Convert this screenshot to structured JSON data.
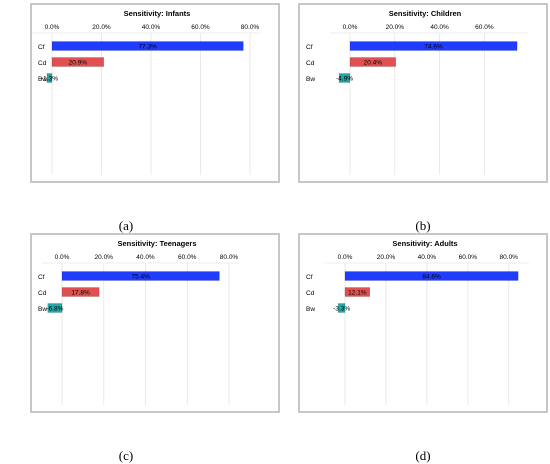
{
  "chart_data": [
    {
      "type": "bar",
      "title": "Sensitivity: Infants",
      "categories": [
        "Cf",
        "Cd",
        "Bw"
      ],
      "values": [
        77.3,
        20.9,
        -1.3
      ],
      "value_labels": [
        "77.3%",
        "20.9%",
        "-1.3%"
      ],
      "xlim": [
        0,
        80
      ],
      "xticks": [
        "0.0%",
        "20.0%",
        "40.0%",
        "60.0%",
        "80.0%"
      ],
      "grid": true,
      "caption": "(a)"
    },
    {
      "type": "bar",
      "title": "Sensitivity: Children",
      "categories": [
        "Cf",
        "Cd",
        "Bw"
      ],
      "values": [
        74.6,
        20.4,
        -4.9
      ],
      "value_labels": [
        "74.6%",
        "20.4%",
        "-4.9%"
      ],
      "xlim": [
        0,
        75
      ],
      "xticks": [
        "0.0%",
        "20.0%",
        "40.0%",
        "60.0%"
      ],
      "grid": true,
      "caption": "(b)"
    },
    {
      "type": "bar",
      "title": "Sensitivity: Teenagers",
      "categories": [
        "Cf",
        "Cd",
        "Bw"
      ],
      "values": [
        75.4,
        17.8,
        -6.8
      ],
      "value_labels": [
        "75.4%",
        "17.8%",
        "-6.8%"
      ],
      "xlim": [
        0,
        80
      ],
      "xticks": [
        "0.0%",
        "20.0%",
        "40.0%",
        "60.0%",
        "80.0%"
      ],
      "grid": true,
      "caption": "(c)"
    },
    {
      "type": "bar",
      "title": "Sensitivity: Adults",
      "categories": [
        "Cf",
        "Cd",
        "Bw"
      ],
      "values": [
        84.6,
        12.1,
        -3.3
      ],
      "value_labels": [
        "84.6%",
        "12.1%",
        "-3.3%"
      ],
      "xlim": [
        0,
        85
      ],
      "xticks": [
        "0.0%",
        "20.0%",
        "40.0%",
        "60.0%",
        "80.0%"
      ],
      "grid": true,
      "caption": "(d)"
    }
  ],
  "colors": {
    "bar_positive_top": "#1f3cff",
    "bar_second": "#e05050",
    "bar_negative": "#22a6a6",
    "grid": "#e4e4e4",
    "border": "#c7c7c7"
  }
}
